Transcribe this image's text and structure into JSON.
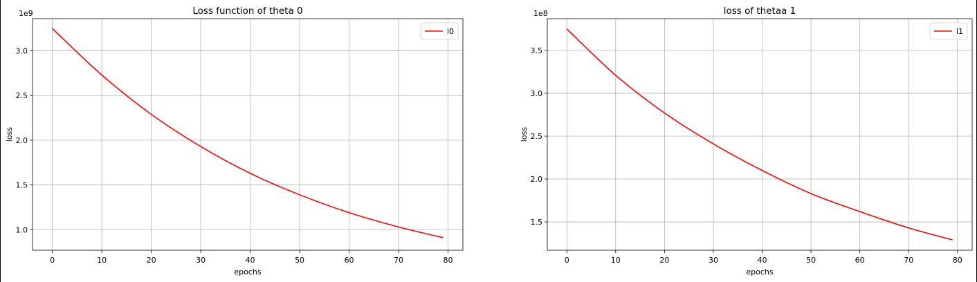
{
  "chart_data": [
    {
      "type": "line",
      "title": "Loss function of theta 0",
      "xlabel": "epochs",
      "ylabel": "loss",
      "offset_label": "1e9",
      "xlim": [
        -4,
        83
      ],
      "ylim": [
        0.77,
        3.36
      ],
      "xticks": [
        0,
        10,
        20,
        30,
        40,
        50,
        60,
        70,
        80
      ],
      "yticks": [
        1.0,
        1.5,
        2.0,
        2.5,
        3.0
      ],
      "ytick_labels": [
        "1.0",
        "1.5",
        "2.0",
        "2.5",
        "3.0"
      ],
      "grid": true,
      "legend_position": "top-right",
      "series": [
        {
          "name": "l0",
          "color": "#ff0000",
          "x": [
            0,
            10,
            20,
            30,
            40,
            50,
            60,
            70,
            79
          ],
          "y": [
            3.25,
            2.73,
            2.29,
            1.93,
            1.63,
            1.39,
            1.19,
            1.03,
            0.91
          ]
        }
      ]
    },
    {
      "type": "line",
      "title": "loss of thetaa 1",
      "xlabel": "epochs",
      "ylabel": "loss",
      "offset_label": "1e8",
      "xlim": [
        -4,
        83
      ],
      "ylim": [
        1.17,
        3.87
      ],
      "xticks": [
        0,
        10,
        20,
        30,
        40,
        50,
        60,
        70,
        80
      ],
      "yticks": [
        1.5,
        2.0,
        2.5,
        3.0,
        3.5
      ],
      "ytick_labels": [
        "1.5",
        "2.0",
        "2.5",
        "3.0",
        "3.5"
      ],
      "grid": true,
      "legend_position": "top-right",
      "series": [
        {
          "name": "l1",
          "color": "#ff0000",
          "x": [
            0,
            10,
            20,
            30,
            40,
            50,
            60,
            70,
            79
          ],
          "y": [
            3.75,
            3.21,
            2.77,
            2.41,
            2.1,
            1.83,
            1.62,
            1.43,
            1.29
          ]
        }
      ]
    }
  ]
}
